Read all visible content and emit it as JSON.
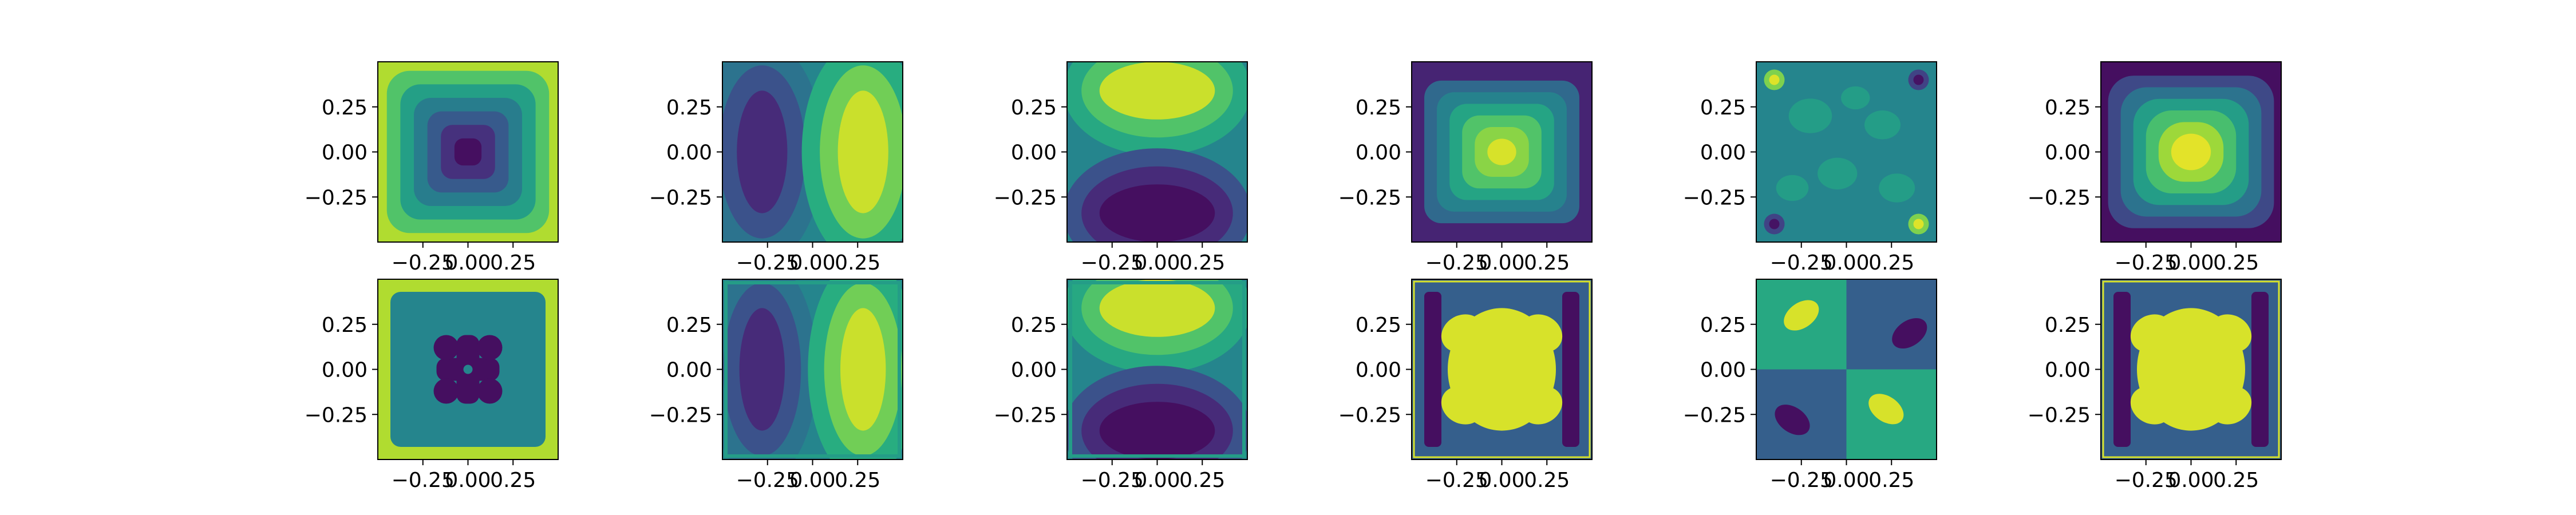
{
  "figure": {
    "grid": "2x6",
    "background": "#ffffff",
    "colormap": "viridis",
    "colormap_stops": [
      "#440154",
      "#472d7b",
      "#3b528b",
      "#2c728e",
      "#21918c",
      "#28ae80",
      "#5ec962",
      "#addc30",
      "#fde725"
    ]
  },
  "chart_data": [
    {
      "type": "heatmap",
      "panel": "r1c1",
      "title": "",
      "xlabel": "",
      "ylabel": "",
      "xlim": [
        -0.5,
        0.5
      ],
      "ylim": [
        -0.5,
        0.5
      ],
      "xticks": [
        "−0.25",
        "0.00",
        "0.25"
      ],
      "yticks": [
        "0.25",
        "0.00",
        "−0.25"
      ],
      "contour_levels": [
        0.72,
        0.56,
        0.42,
        0.28,
        0.14,
        0.04
      ],
      "pattern": "bowl",
      "style": "smooth",
      "background_level": 0.88
    },
    {
      "type": "heatmap",
      "panel": "r1c2",
      "title": "",
      "xlabel": "",
      "ylabel": "",
      "xlim": [
        -0.5,
        0.5
      ],
      "ylim": [
        -0.5,
        0.5
      ],
      "xticks": [
        "−0.25",
        "0.00",
        "0.25"
      ],
      "yticks": [
        "0.25",
        "0.00",
        "−0.25"
      ],
      "contour_levels": [
        0.12,
        0.25,
        0.38,
        0.62,
        0.78,
        0.92
      ],
      "pattern": "x-dipole",
      "style": "smooth",
      "background_level": 0.45
    },
    {
      "type": "heatmap",
      "panel": "r1c3",
      "title": "",
      "xlabel": "",
      "ylabel": "",
      "xlim": [
        -0.5,
        0.5
      ],
      "ylim": [
        -0.5,
        0.5
      ],
      "xticks": [
        "−0.25",
        "0.00",
        "0.25"
      ],
      "yticks": [
        "0.25",
        "0.00",
        "−0.25"
      ],
      "contour_levels": [
        0.92,
        0.72,
        0.6,
        0.25,
        0.12,
        0.04
      ],
      "pattern": "y-dipole",
      "style": "smooth",
      "background_level": 0.45
    },
    {
      "type": "heatmap",
      "panel": "r1c4",
      "title": "",
      "xlabel": "",
      "ylabel": "",
      "xlim": [
        -0.5,
        0.5
      ],
      "ylim": [
        -0.5,
        0.5
      ],
      "xticks": [
        "−0.25",
        "0.00",
        "0.25"
      ],
      "yticks": [
        "0.25",
        "0.00",
        "−0.25"
      ],
      "contour_levels": [
        0.34,
        0.44,
        0.58,
        0.72,
        0.82,
        0.94
      ],
      "pattern": "dome",
      "style": "smooth",
      "background_level": 0.1
    },
    {
      "type": "heatmap",
      "panel": "r1c5",
      "title": "",
      "xlabel": "",
      "ylabel": "",
      "xlim": [
        -0.5,
        0.5
      ],
      "ylim": [
        -0.5,
        0.5
      ],
      "xticks": [
        "−0.25",
        "0.00",
        "0.25"
      ],
      "yticks": [
        "0.25",
        "0.00",
        "−0.25"
      ],
      "contour_levels": [
        0.55,
        0.65,
        0.8,
        0.95,
        0.4,
        0.2,
        0.05
      ],
      "pattern": "noise",
      "style": "smooth",
      "background_level": 0.45
    },
    {
      "type": "heatmap",
      "panel": "r1c6",
      "title": "",
      "xlabel": "",
      "ylabel": "",
      "xlim": [
        -0.5,
        0.5
      ],
      "ylim": [
        -0.5,
        0.5
      ],
      "xticks": [
        "−0.25",
        "0.00",
        "0.25"
      ],
      "yticks": [
        "0.25",
        "0.00",
        "−0.25"
      ],
      "contour_levels": [
        0.22,
        0.38,
        0.55,
        0.7,
        0.85,
        0.96
      ],
      "pattern": "dome-wide",
      "style": "smooth",
      "background_level": 0.04
    },
    {
      "type": "heatmap",
      "panel": "r2c1",
      "title": "",
      "xlabel": "",
      "ylabel": "",
      "xlim": [
        -0.5,
        0.5
      ],
      "ylim": [
        -0.5,
        0.5
      ],
      "xticks": [
        "−0.25",
        "0.00",
        "0.25"
      ],
      "yticks": [
        "0.25",
        "0.00",
        "−0.25"
      ],
      "contour_levels": [
        0.45,
        0.04
      ],
      "pattern": "bowl-cross",
      "style": "sharp",
      "background_level": 0.88
    },
    {
      "type": "heatmap",
      "panel": "r2c2",
      "title": "",
      "xlabel": "",
      "ylabel": "",
      "xlim": [
        -0.5,
        0.5
      ],
      "ylim": [
        -0.5,
        0.5
      ],
      "xticks": [
        "−0.25",
        "0.00",
        "0.25"
      ],
      "yticks": [
        "0.25",
        "0.00",
        "−0.25"
      ],
      "contour_levels": [
        0.12,
        0.25,
        0.38,
        0.62,
        0.78,
        0.92
      ],
      "pattern": "x-dipole",
      "style": "blocky",
      "background_level": 0.45
    },
    {
      "type": "heatmap",
      "panel": "r2c3",
      "title": "",
      "xlabel": "",
      "ylabel": "",
      "xlim": [
        -0.5,
        0.5
      ],
      "ylim": [
        -0.5,
        0.5
      ],
      "xticks": [
        "−0.25",
        "0.00",
        "0.25"
      ],
      "yticks": [
        "0.25",
        "0.00",
        "−0.25"
      ],
      "contour_levels": [
        0.92,
        0.72,
        0.6,
        0.25,
        0.12,
        0.04
      ],
      "pattern": "y-dipole",
      "style": "blocky",
      "background_level": 0.45
    },
    {
      "type": "heatmap",
      "panel": "r2c4",
      "title": "",
      "xlabel": "",
      "ylabel": "",
      "xlim": [
        -0.5,
        0.5
      ],
      "ylim": [
        -0.5,
        0.5
      ],
      "xticks": [
        "−0.25",
        "0.00",
        "0.25"
      ],
      "yticks": [
        "0.25",
        "0.00",
        "−0.25"
      ],
      "contour_levels": [
        0.04,
        0.94
      ],
      "pattern": "blob-x",
      "style": "sharp",
      "background_level": 0.3
    },
    {
      "type": "heatmap",
      "panel": "r2c5",
      "title": "",
      "xlabel": "",
      "ylabel": "",
      "xlim": [
        -0.5,
        0.5
      ],
      "ylim": [
        -0.5,
        0.5
      ],
      "xticks": [
        "−0.25",
        "0.00",
        "0.25"
      ],
      "yticks": [
        "0.25",
        "0.00",
        "−0.25"
      ],
      "contour_levels": [
        0.6,
        0.3,
        0.94,
        0.04
      ],
      "pattern": "quadrants",
      "style": "sharp",
      "background_level": 0.3
    },
    {
      "type": "heatmap",
      "panel": "r2c6",
      "title": "",
      "xlabel": "",
      "ylabel": "",
      "xlim": [
        -0.5,
        0.5
      ],
      "ylim": [
        -0.5,
        0.5
      ],
      "xticks": [
        "−0.25",
        "0.00",
        "0.25"
      ],
      "yticks": [
        "0.25",
        "0.00",
        "−0.25"
      ],
      "contour_levels": [
        0.04,
        0.94
      ],
      "pattern": "blob-x",
      "style": "sharp",
      "background_level": 0.3
    }
  ]
}
